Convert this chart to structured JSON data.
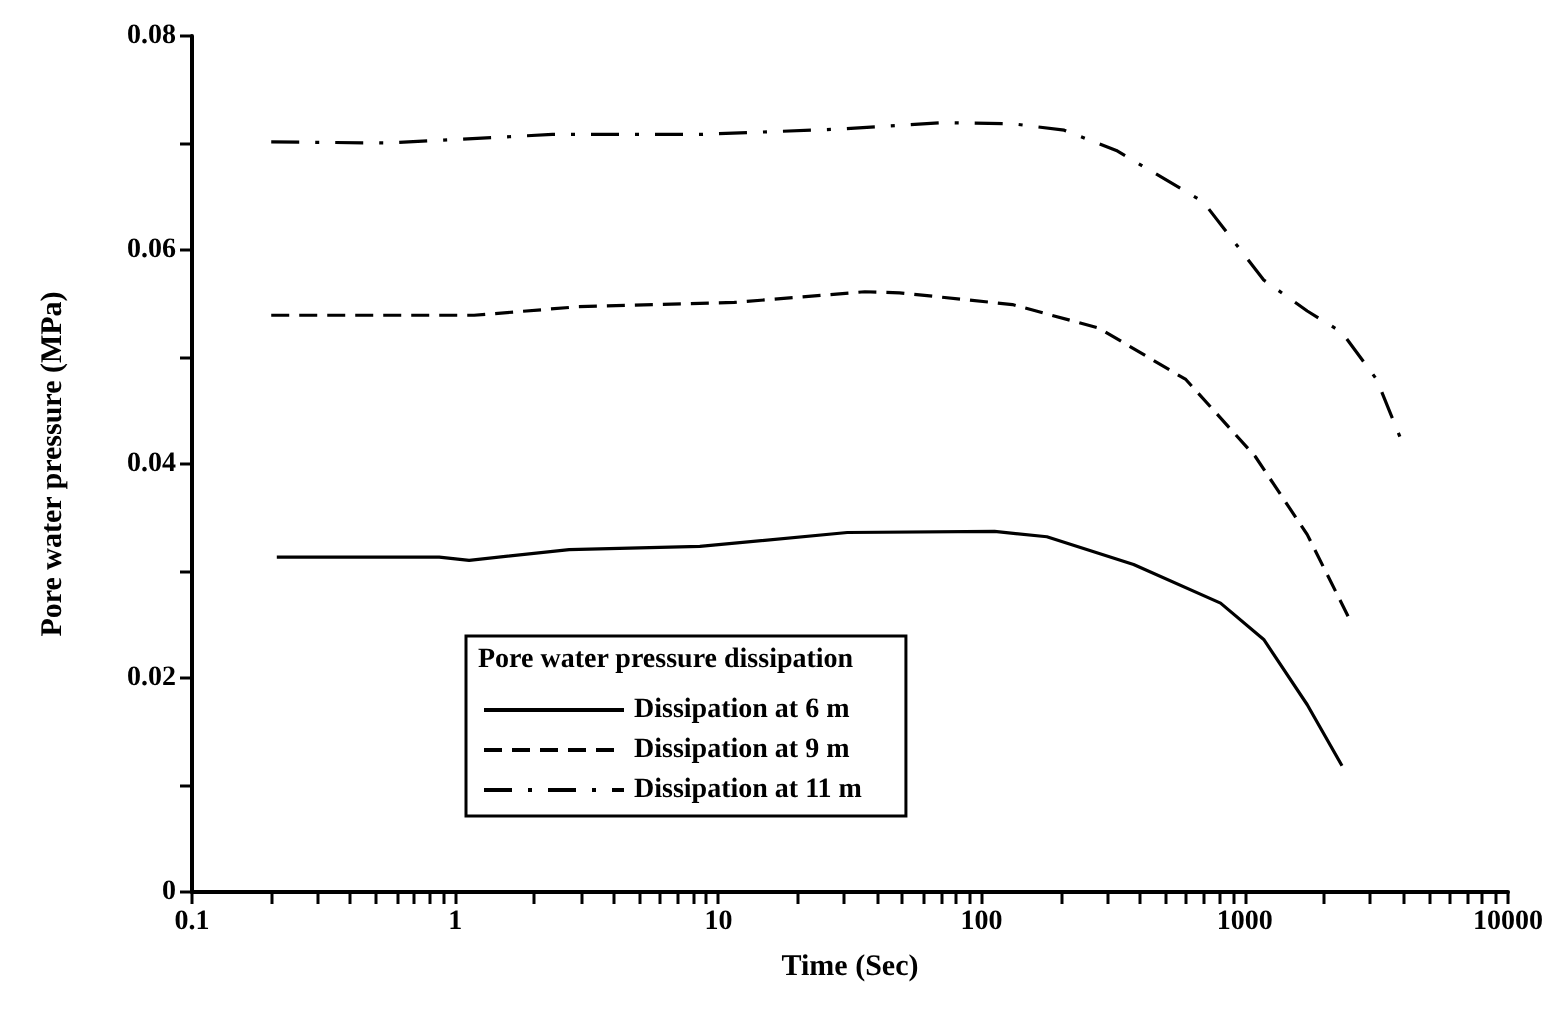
{
  "chart_data": {
    "type": "line",
    "xlabel": "Time (Sec)",
    "ylabel": "Pore water pressure (MPa)",
    "legend_title": "Pore water pressure dissipation",
    "log": "x",
    "grid": false,
    "legend": "bottom left",
    "marker": "none",
    "xlim": [
      0.1,
      10000
    ],
    "ylim": [
      0,
      0.08
    ],
    "xticks": [
      0.1,
      {
        "value": 0.2,
        "label": null
      },
      {
        "value": 0.3,
        "label": null
      },
      {
        "value": 0.4,
        "label": null
      },
      {
        "value": 0.5,
        "label": null
      },
      {
        "value": 0.6,
        "label": null
      },
      {
        "value": 0.7,
        "label": null
      },
      {
        "value": 0.8,
        "label": null
      },
      {
        "value": 0.9,
        "label": null
      },
      1,
      {
        "value": 2,
        "label": null
      },
      {
        "value": 3,
        "label": null
      },
      {
        "value": 4,
        "label": null
      },
      {
        "value": 5,
        "label": null
      },
      {
        "value": 6,
        "label": null
      },
      {
        "value": 7,
        "label": null
      },
      {
        "value": 8,
        "label": null
      },
      {
        "value": 9,
        "label": null
      },
      10,
      {
        "value": 20,
        "label": null
      },
      {
        "value": 30,
        "label": null
      },
      {
        "value": 40,
        "label": null
      },
      {
        "value": 50,
        "label": null
      },
      {
        "value": 60,
        "label": null
      },
      {
        "value": 70,
        "label": null
      },
      {
        "value": 80,
        "label": null
      },
      {
        "value": 90,
        "label": null
      },
      100,
      {
        "value": 200,
        "label": null
      },
      {
        "value": 300,
        "label": null
      },
      {
        "value": 400,
        "label": null
      },
      {
        "value": 500,
        "label": null
      },
      {
        "value": 600,
        "label": null
      },
      {
        "value": 700,
        "label": null
      },
      {
        "value": 800,
        "label": null
      },
      {
        "value": 900,
        "label": null
      },
      1000,
      {
        "value": 2000,
        "label": null
      },
      {
        "value": 3000,
        "label": null
      },
      {
        "value": 4000,
        "label": null
      },
      {
        "value": 5000,
        "label": null
      },
      {
        "value": 6000,
        "label": null
      },
      {
        "value": 7000,
        "label": null
      },
      {
        "value": 8000,
        "label": null
      },
      {
        "value": 9000,
        "label": null
      },
      10000
    ],
    "yticks": [
      0,
      {
        "value": 0.01,
        "label": null
      },
      0.02,
      {
        "value": 0.03,
        "label": null
      },
      0.04,
      {
        "value": 0.05,
        "label": null
      },
      0.06,
      {
        "value": 0.07,
        "label": null
      },
      0.08
    ],
    "series": [
      {
        "name": "Dissipation at 6 m",
        "color": "#000000",
        "line_style": "solid",
        "x": [
          0.21,
          0.87,
          1.13,
          2.71,
          8.5,
          30.9,
          112,
          177,
          378,
          809,
          1180,
          1727,
          2340
        ],
        "values": [
          0.0313,
          0.0313,
          0.031,
          0.032,
          0.0323,
          0.0336,
          0.0337,
          0.0332,
          0.0306,
          0.027,
          0.0236,
          0.0175,
          0.0118
        ]
      },
      {
        "name": "Dissipation at 9 m",
        "color": "#000000",
        "line_style": "dashed",
        "x": [
          0.2,
          1.18,
          2.94,
          11.5,
          36,
          48.8,
          131,
          279,
          597,
          1096,
          1727,
          2523
        ],
        "values": [
          0.0539,
          0.0539,
          0.0547,
          0.0551,
          0.0561,
          0.056,
          0.0549,
          0.0527,
          0.0479,
          0.0407,
          0.0334,
          0.0253
        ]
      },
      {
        "name": "Dissipation at 11 m",
        "color": "#000000",
        "line_style": "dashdot",
        "x": [
          0.2,
          0.55,
          2.34,
          8.5,
          28.6,
          71,
          131,
          206,
          325,
          695,
          1180,
          1727,
          2340,
          3170,
          3980
        ],
        "values": [
          0.0701,
          0.07,
          0.0708,
          0.0708,
          0.0713,
          0.0719,
          0.0718,
          0.0712,
          0.0693,
          0.0645,
          0.0572,
          0.0543,
          0.0523,
          0.0479,
          0.0419
        ]
      }
    ]
  }
}
